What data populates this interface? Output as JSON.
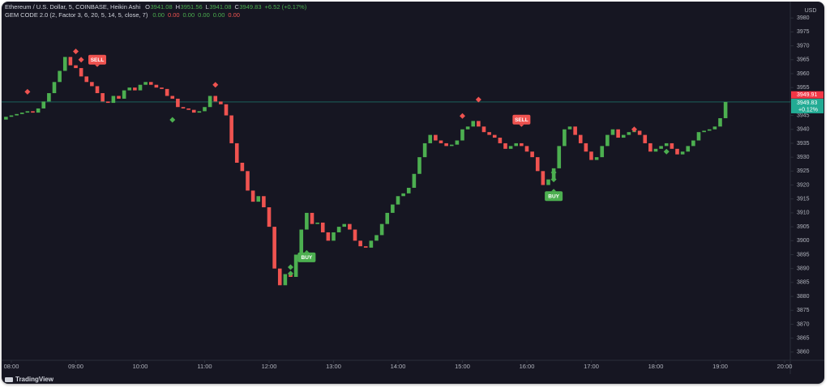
{
  "chart_data": {
    "type": "candlestick",
    "title": "Ethereum / U.S. Dollar, 5, COINBASE, Heikin Ashi",
    "ohlc": [
      {
        "label": "O",
        "value": "3941.08"
      },
      {
        "label": "H",
        "value": "3951.56"
      },
      {
        "label": "L",
        "value": "3941.08"
      },
      {
        "label": "C",
        "value": "3949.83"
      }
    ],
    "change": "+6.52 (+0.17%)",
    "indicator": {
      "name": "GEM CODE 2.0 (2, Factor 3, 6, 20, 5, 14, 5, close, 7)",
      "values": [
        {
          "text": "0.00",
          "color": "#4caf50"
        },
        {
          "text": "0.00",
          "color": "#ef5350"
        },
        {
          "text": "0.00",
          "color": "#4caf50"
        },
        {
          "text": "0.00",
          "color": "#4caf50"
        },
        {
          "text": "0.00",
          "color": "#4caf50"
        },
        {
          "text": "0.00",
          "color": "#ef5350"
        }
      ]
    },
    "currency": "USD",
    "branding": "TradingView",
    "up_color": "#4caf50",
    "down_color": "#ef5350",
    "x": [
      "07:55",
      "08:00",
      "08:05",
      "08:10",
      "08:15",
      "08:20",
      "08:25",
      "08:30",
      "08:35",
      "08:40",
      "08:45",
      "08:50",
      "08:55",
      "09:00",
      "09:05",
      "09:10",
      "09:15",
      "09:20",
      "09:25",
      "09:30",
      "09:35",
      "09:40",
      "09:45",
      "09:50",
      "09:55",
      "10:00",
      "10:05",
      "10:10",
      "10:15",
      "10:20",
      "10:25",
      "10:30",
      "10:35",
      "10:40",
      "10:45",
      "10:50",
      "10:55",
      "11:00",
      "11:05",
      "11:10",
      "11:15",
      "11:20",
      "11:25",
      "11:30",
      "11:35",
      "11:40",
      "11:45",
      "11:50",
      "11:55",
      "12:00",
      "12:05",
      "12:10",
      "12:15",
      "12:20",
      "12:25",
      "12:30",
      "12:35",
      "12:40",
      "12:45",
      "12:50",
      "12:55",
      "13:00",
      "13:05",
      "13:10",
      "13:15",
      "13:20",
      "13:25",
      "13:30",
      "13:35",
      "13:40",
      "13:45",
      "13:50",
      "13:55",
      "14:00",
      "14:05",
      "14:10",
      "14:15",
      "14:20",
      "14:25",
      "14:30",
      "14:35",
      "14:40",
      "14:45",
      "14:50",
      "14:55",
      "15:00",
      "15:05",
      "15:10",
      "15:15",
      "15:20",
      "15:25",
      "15:30",
      "15:35",
      "15:40",
      "15:45",
      "15:50",
      "15:55",
      "16:00",
      "16:05",
      "16:10",
      "16:15",
      "16:20",
      "16:25",
      "16:30",
      "16:35",
      "16:40",
      "16:45",
      "16:50",
      "16:55",
      "17:00",
      "17:05",
      "17:10",
      "17:15",
      "17:20",
      "17:25",
      "17:30",
      "17:35",
      "17:40",
      "17:45",
      "17:50",
      "17:55",
      "18:00",
      "18:05",
      "18:10",
      "18:15",
      "18:20",
      "18:25",
      "18:30",
      "18:35",
      "18:40",
      "18:45",
      "18:50",
      "18:55",
      "19:00",
      "19:05"
    ],
    "open": [
      3943.5,
      3944.5,
      3945,
      3945.5,
      3946,
      3946.5,
      3946,
      3947.5,
      3950,
      3953,
      3957,
      3961,
      3966,
      3963,
      3962,
      3959,
      3957,
      3955.5,
      3953,
      3950,
      3949.5,
      3952,
      3951,
      3954,
      3955,
      3954,
      3956,
      3957,
      3956,
      3955,
      3954.5,
      3952,
      3951,
      3948,
      3947.5,
      3947,
      3946,
      3946.5,
      3948,
      3952,
      3950,
      3949,
      3945,
      3935,
      3928,
      3925,
      3918,
      3914,
      3916,
      3912,
      3905,
      3890,
      3884,
      3888,
      3887,
      3895,
      3904,
      3910,
      3906,
      3906.5,
      3903,
      3900,
      3903,
      3905,
      3906,
      3904,
      3900,
      3898,
      3897.5,
      3900,
      3902,
      3906,
      3910,
      3913,
      3916,
      3917,
      3919,
      3924,
      3930,
      3935,
      3938,
      3936,
      3935,
      3934,
      3934.5,
      3936,
      3940,
      3941,
      3943,
      3941,
      3939,
      3938,
      3937,
      3935,
      3933,
      3934,
      3935,
      3934,
      3932,
      3930,
      3925,
      3920,
      3922,
      3926,
      3934,
      3940,
      3941,
      3938,
      3935,
      3932,
      3929,
      3930,
      3934,
      3938,
      3940,
      3937,
      3938,
      3939,
      3939.5,
      3938,
      3935,
      3932,
      3933,
      3934,
      3935,
      3933,
      3931,
      3932,
      3934,
      3936,
      3939,
      3939.5,
      3940,
      3941,
      3944
    ],
    "close": [
      3944.5,
      3945,
      3945.5,
      3946,
      3946.5,
      3946,
      3947.5,
      3950,
      3953,
      3957,
      3961,
      3966,
      3963,
      3962,
      3959,
      3957,
      3955.5,
      3953,
      3950,
      3949.5,
      3952,
      3951,
      3954,
      3955,
      3954,
      3956,
      3957,
      3956,
      3955,
      3954.5,
      3952,
      3951,
      3948,
      3947.5,
      3947,
      3946,
      3946.5,
      3948,
      3952,
      3950,
      3949,
      3945,
      3935,
      3928,
      3925,
      3918,
      3914,
      3916,
      3912,
      3905,
      3890,
      3884,
      3888,
      3887,
      3895,
      3904,
      3910,
      3906,
      3906.5,
      3903,
      3900,
      3903,
      3905,
      3906,
      3904,
      3900,
      3898,
      3897.5,
      3900,
      3902,
      3906,
      3910,
      3913,
      3916,
      3917,
      3919,
      3924,
      3930,
      3935,
      3938,
      3936,
      3935,
      3934,
      3934.5,
      3936,
      3940,
      3941,
      3943,
      3941,
      3939,
      3938,
      3937,
      3935,
      3933,
      3934,
      3935,
      3934,
      3932,
      3930,
      3925,
      3920,
      3922,
      3926,
      3934,
      3940,
      3941,
      3938,
      3935,
      3932,
      3929,
      3930,
      3934,
      3938,
      3940,
      3937,
      3938,
      3939,
      3939.5,
      3938,
      3935,
      3932,
      3933,
      3934,
      3935,
      3933,
      3931,
      3932,
      3934,
      3936,
      3939,
      3939.5,
      3940,
      3941,
      3944,
      3949.83
    ],
    "sell_signals": {
      "color": "#ef5350",
      "x": [
        "08:15",
        "09:00",
        "09:05",
        "11:10",
        "15:00",
        "15:15",
        "17:40"
      ],
      "values": [
        3953.5,
        3968,
        3965,
        3956,
        3944.8,
        3950.7,
        3940
      ]
    },
    "buy_signals": {
      "color": "#4caf50",
      "x": [
        "10:30",
        "12:20",
        "12:20",
        "16:25",
        "16:25",
        "18:10"
      ],
      "values": [
        3943.4,
        3888.2,
        3890.5,
        3922,
        3924.5,
        3932
      ]
    },
    "annotations": [
      {
        "text": "SELL",
        "x": "09:20",
        "value": 3965,
        "color": "#ef5350"
      },
      {
        "text": "SELL",
        "x": "15:55",
        "value": 3943.5,
        "color": "#ef5350"
      },
      {
        "text": "BUY",
        "x": "12:35",
        "value": 3894,
        "color": "#4caf50"
      },
      {
        "text": "BUY",
        "x": "16:25",
        "value": 3916,
        "color": "#4caf50"
      }
    ],
    "price_labels": [
      {
        "value": 3949.91,
        "color": "#f23645"
      },
      {
        "value": 3949.83,
        "sub": "+0.12%",
        "color": "#22ab94"
      }
    ],
    "ylim": [
      3858.5,
      3985
    ],
    "yticks": [
      3860,
      3865,
      3870,
      3875,
      3880,
      3885,
      3890,
      3895,
      3900,
      3905,
      3910,
      3915,
      3920,
      3925,
      3930,
      3935,
      3940,
      3945,
      3950,
      3955,
      3960,
      3965,
      3970,
      3975,
      3980
    ],
    "xticks": [
      "08:00",
      "09:00",
      "10:00",
      "11:00",
      "12:00",
      "13:00",
      "14:00",
      "15:00",
      "16:00",
      "17:00",
      "18:00",
      "19:00",
      "20:00"
    ]
  }
}
